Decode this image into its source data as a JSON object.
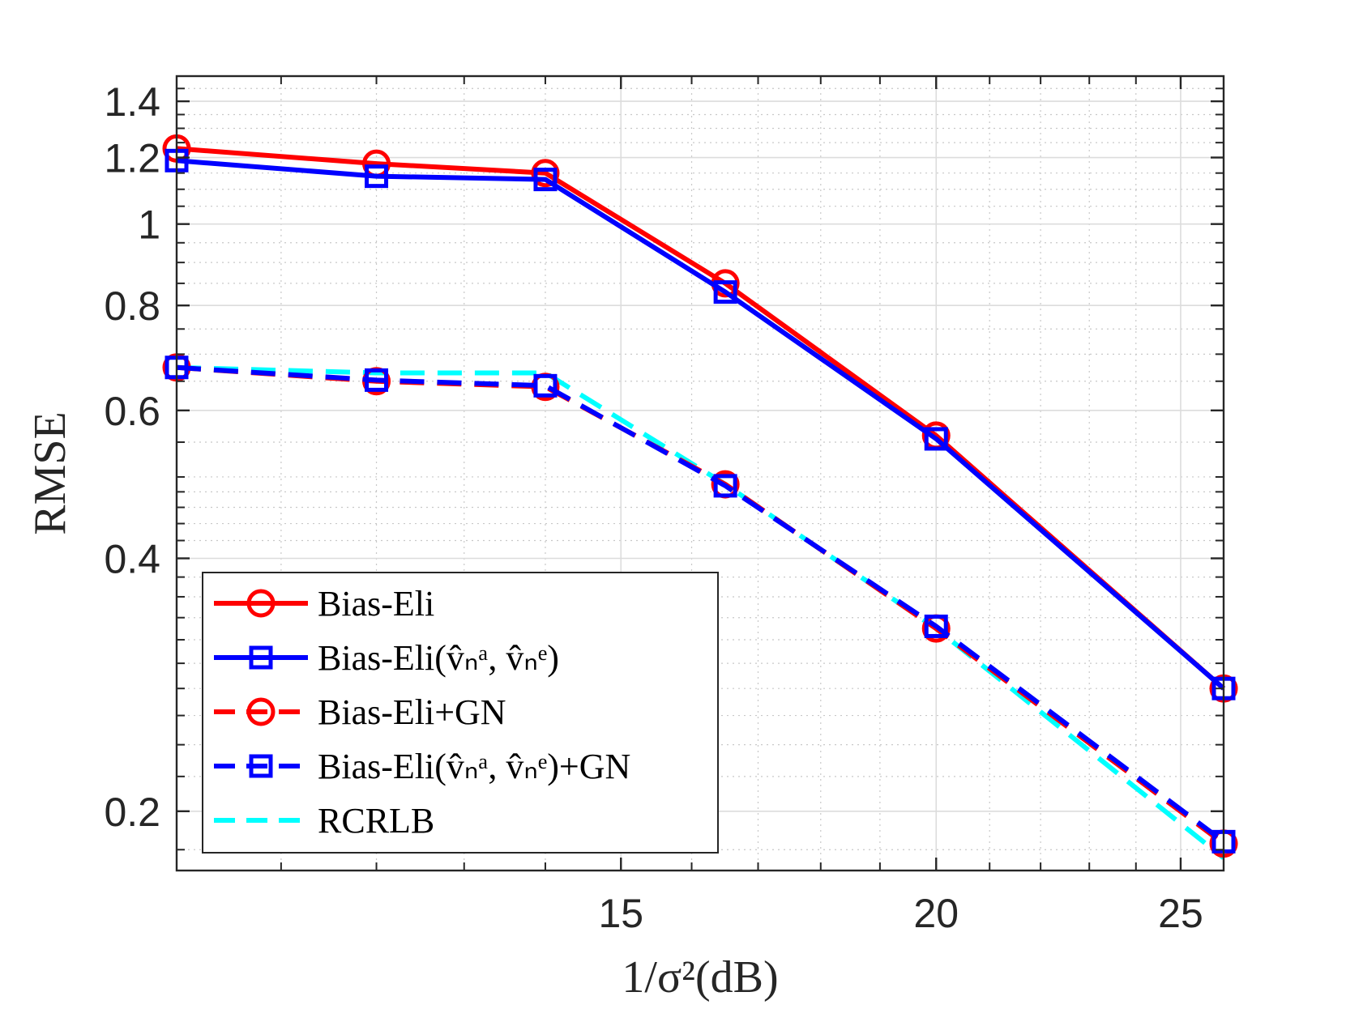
{
  "chart_data": {
    "type": "line",
    "title": "",
    "xlabel": "1/σ²(dB)",
    "ylabel": "RMSE",
    "xscale": "log",
    "yscale": "log",
    "xlim": [
      10,
      26
    ],
    "ylim": [
      0.17,
      1.5
    ],
    "xticks": [
      15,
      20,
      25
    ],
    "xtick_labels": [
      "15",
      "20",
      "25"
    ],
    "yticks": [
      0.2,
      0.4,
      0.6,
      0.8,
      1,
      1.2,
      1.4
    ],
    "ytick_labels": [
      "0.2",
      "0.4",
      "0.6",
      "0.8",
      "1",
      "1.2",
      "1.4"
    ],
    "grid": true,
    "legend_position": "bottom-left",
    "x": [
      10,
      12,
      14,
      16.5,
      20,
      26
    ],
    "series": [
      {
        "name": "Bias-Eli",
        "legend_label": "Bias-Eli",
        "color": "#ff0000",
        "dash": "solid",
        "marker": "circle",
        "values": [
          1.23,
          1.18,
          1.15,
          0.85,
          0.56,
          0.28
        ]
      },
      {
        "name": "Bias-Eli(v̂ₙᵃ, v̂ₙᵉ)",
        "legend_label": "Bias-Eli(v̂ₙᵃ, v̂ₙᵉ)",
        "color": "#0000ff",
        "dash": "solid",
        "marker": "square",
        "values": [
          1.19,
          1.14,
          1.13,
          0.83,
          0.555,
          0.28
        ]
      },
      {
        "name": "Bias-Eli+GN",
        "legend_label": "Bias-Eli+GN",
        "color": "#ff0000",
        "dash": "dashed",
        "marker": "circle",
        "values": [
          0.675,
          0.65,
          0.64,
          0.49,
          0.33,
          0.183
        ]
      },
      {
        "name": "Bias-Eli(v̂ₙᵃ, v̂ₙᵉ)+GN",
        "legend_label": "Bias-Eli(v̂ₙᵃ, v̂ₙᵉ)+GN",
        "color": "#0000ff",
        "dash": "dashed",
        "marker": "square",
        "values": [
          0.675,
          0.652,
          0.642,
          0.488,
          0.332,
          0.184
        ]
      },
      {
        "name": "RCRLB",
        "legend_label": "RCRLB",
        "color": "#00ffff",
        "dash": "dashed",
        "marker": "none",
        "values": [
          0.675,
          0.665,
          0.665,
          0.49,
          0.33,
          0.176
        ]
      }
    ]
  }
}
